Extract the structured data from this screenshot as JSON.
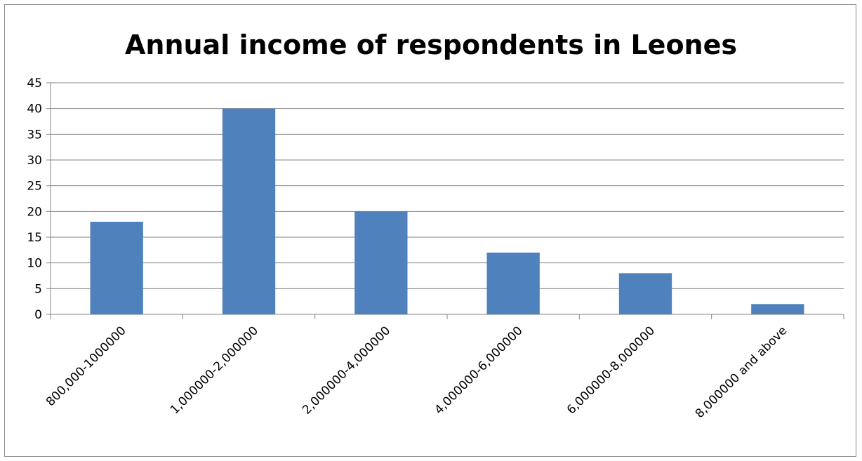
{
  "chart_data": {
    "type": "bar",
    "title": "Annual income of respondents in Leones",
    "xlabel": "",
    "ylabel": "",
    "categories": [
      "800,000-1000000",
      "1,000000-2,000000",
      "2,000000-4,000000",
      "4,000000-6,000000",
      "6,000000-8,000000",
      "8,000000 and above"
    ],
    "values": [
      18,
      40,
      20,
      12,
      8,
      2
    ],
    "ylim": [
      0,
      45
    ],
    "yticks": [
      "0",
      "5",
      "10",
      "15",
      "20",
      "25",
      "30",
      "35",
      "40",
      "45"
    ],
    "grid": true,
    "legend": "none",
    "bar_color": "#4f81bd",
    "grid_color": "#868686"
  }
}
